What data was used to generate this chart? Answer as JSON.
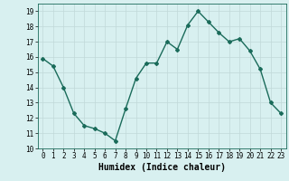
{
  "x": [
    0,
    1,
    2,
    3,
    4,
    5,
    6,
    7,
    8,
    9,
    10,
    11,
    12,
    13,
    14,
    15,
    16,
    17,
    18,
    19,
    20,
    21,
    22,
    23
  ],
  "y": [
    15.9,
    15.4,
    14.0,
    12.3,
    11.5,
    11.3,
    11.0,
    10.5,
    12.6,
    14.6,
    15.6,
    15.6,
    17.0,
    16.5,
    18.1,
    19.0,
    18.3,
    17.6,
    17.0,
    17.2,
    16.4,
    15.2,
    13.0,
    12.3
  ],
  "line_color": "#1a6b5a",
  "marker": "D",
  "marker_size": 2,
  "line_width": 1.0,
  "bg_color": "#d8f0f0",
  "grid_color": "#c0d8d8",
  "xlabel": "Humidex (Indice chaleur)",
  "xlabel_fontsize": 7,
  "ylim": [
    10,
    19.5
  ],
  "xlim": [
    -0.5,
    23.5
  ],
  "yticks": [
    10,
    11,
    12,
    13,
    14,
    15,
    16,
    17,
    18,
    19
  ],
  "xticks": [
    0,
    1,
    2,
    3,
    4,
    5,
    6,
    7,
    8,
    9,
    10,
    11,
    12,
    13,
    14,
    15,
    16,
    17,
    18,
    19,
    20,
    21,
    22,
    23
  ],
  "tick_fontsize": 5.5
}
